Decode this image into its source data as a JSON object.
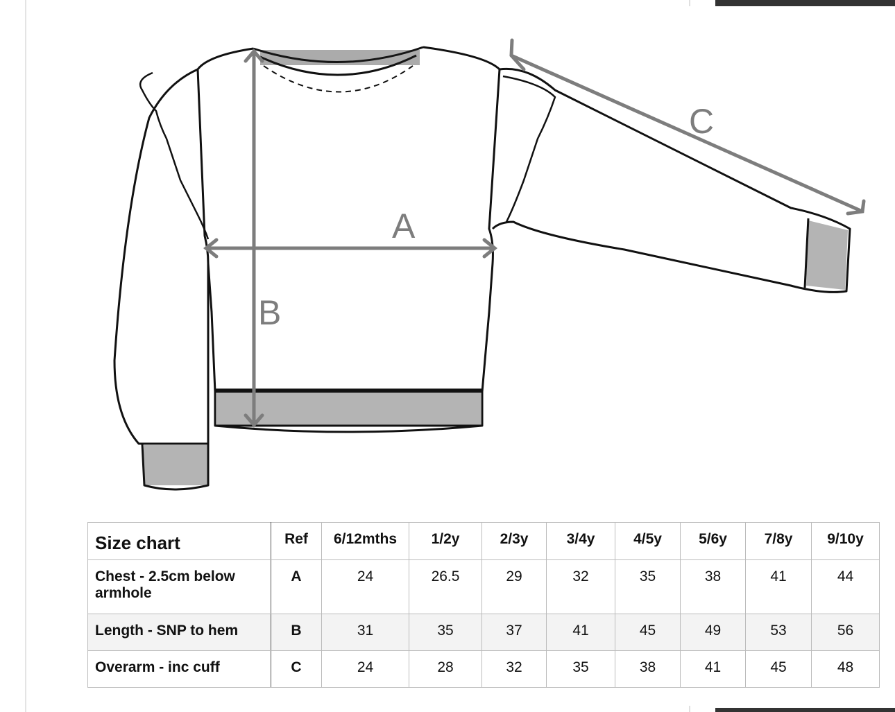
{
  "diagram": {
    "labels": {
      "a": "A",
      "b": "B",
      "c": "C"
    },
    "measure_color": "#7d7d7d"
  },
  "table": {
    "title": "Size chart",
    "ref_header": "Ref",
    "sizes": [
      "6/12mths",
      "1/2y",
      "2/3y",
      "3/4y",
      "4/5y",
      "5/6y",
      "7/8y",
      "9/10y"
    ],
    "rows": [
      {
        "label": "Chest - 2.5cm below armhole",
        "ref": "A",
        "values": [
          "24",
          "26.5",
          "29",
          "32",
          "35",
          "38",
          "41",
          "44"
        ]
      },
      {
        "label": "Length - SNP to hem",
        "ref": "B",
        "values": [
          "31",
          "35",
          "37",
          "41",
          "45",
          "49",
          "53",
          "56"
        ]
      },
      {
        "label": "Overarm - inc cuff",
        "ref": "C",
        "values": [
          "24",
          "28",
          "32",
          "35",
          "38",
          "41",
          "45",
          "48"
        ]
      }
    ]
  }
}
